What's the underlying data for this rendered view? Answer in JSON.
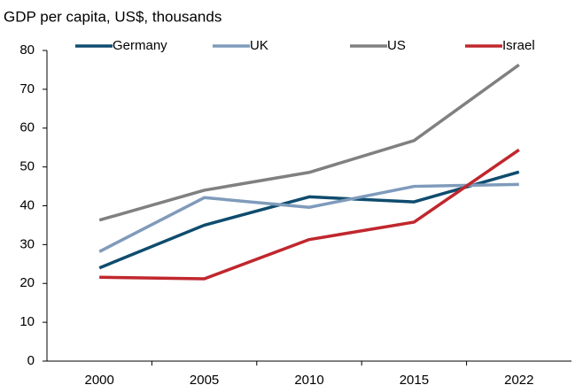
{
  "chart_data": {
    "type": "line",
    "subtitle": "GDP per capita, US$, thousands",
    "categories": [
      "2000",
      "2005",
      "2010",
      "2015",
      "2022"
    ],
    "series": [
      {
        "name": "Germany",
        "color": "#0f4c6e",
        "values": [
          24,
          35,
          42.3,
          41,
          48.7
        ]
      },
      {
        "name": "UK",
        "color": "#7f9bbb",
        "values": [
          28.2,
          42.1,
          39.6,
          45,
          45.5
        ]
      },
      {
        "name": "US",
        "color": "#808080",
        "values": [
          36.3,
          44,
          48.6,
          56.8,
          76.3
        ]
      },
      {
        "name": "Israel",
        "color": "#c0272d",
        "values": [
          21.6,
          21.2,
          31.3,
          35.8,
          54.4
        ]
      }
    ],
    "ylim": [
      0,
      80
    ],
    "yticks": [
      0,
      10,
      20,
      30,
      40,
      50,
      60,
      70,
      80
    ],
    "grid": false,
    "legend": "top"
  }
}
